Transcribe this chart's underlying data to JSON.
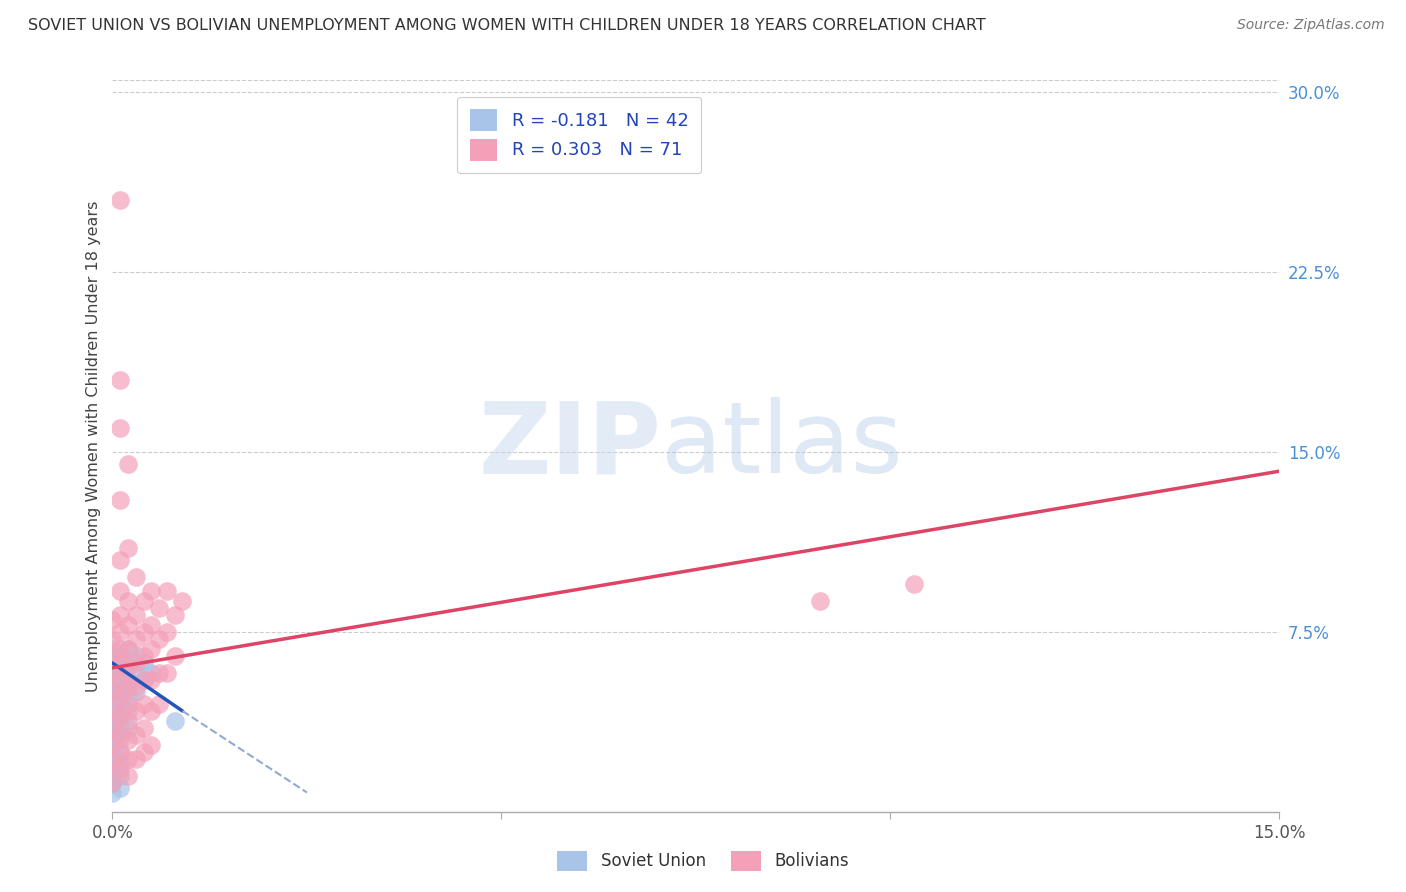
{
  "title": "SOVIET UNION VS BOLIVIAN UNEMPLOYMENT AMONG WOMEN WITH CHILDREN UNDER 18 YEARS CORRELATION CHART",
  "source": "Source: ZipAtlas.com",
  "ylabel": "Unemployment Among Women with Children Under 18 years",
  "right_yticks": [
    "30.0%",
    "22.5%",
    "15.0%",
    "7.5%"
  ],
  "right_ytick_vals": [
    0.3,
    0.225,
    0.15,
    0.075
  ],
  "legend_label1": "R = -0.181   N = 42",
  "legend_label2": "R = 0.303   N = 71",
  "xlim": [
    0.0,
    0.15
  ],
  "ylim": [
    0.0,
    0.305
  ],
  "soviet_color": "#a8c4e8",
  "bolivian_color": "#f4a0b8",
  "soviet_line_color": "#2255bb",
  "bolivian_line_color": "#dd4466",
  "soviet_line_dashed_color": "#90aad0",
  "background_color": "#ffffff",
  "soviet_points": [
    [
      0.0,
      0.068
    ],
    [
      0.0,
      0.062
    ],
    [
      0.0,
      0.058
    ],
    [
      0.0,
      0.055
    ],
    [
      0.0,
      0.05
    ],
    [
      0.0,
      0.045
    ],
    [
      0.0,
      0.042
    ],
    [
      0.0,
      0.038
    ],
    [
      0.0,
      0.035
    ],
    [
      0.0,
      0.032
    ],
    [
      0.0,
      0.028
    ],
    [
      0.0,
      0.025
    ],
    [
      0.0,
      0.022
    ],
    [
      0.0,
      0.018
    ],
    [
      0.0,
      0.015
    ],
    [
      0.0,
      0.012
    ],
    [
      0.0,
      0.008
    ],
    [
      0.001,
      0.065
    ],
    [
      0.001,
      0.06
    ],
    [
      0.001,
      0.055
    ],
    [
      0.001,
      0.05
    ],
    [
      0.001,
      0.045
    ],
    [
      0.001,
      0.04
    ],
    [
      0.001,
      0.035
    ],
    [
      0.001,
      0.03
    ],
    [
      0.001,
      0.025
    ],
    [
      0.001,
      0.02
    ],
    [
      0.001,
      0.015
    ],
    [
      0.001,
      0.01
    ],
    [
      0.002,
      0.068
    ],
    [
      0.002,
      0.062
    ],
    [
      0.002,
      0.055
    ],
    [
      0.002,
      0.048
    ],
    [
      0.002,
      0.042
    ],
    [
      0.002,
      0.035
    ],
    [
      0.003,
      0.065
    ],
    [
      0.003,
      0.058
    ],
    [
      0.003,
      0.05
    ],
    [
      0.004,
      0.062
    ],
    [
      0.004,
      0.055
    ],
    [
      0.005,
      0.058
    ],
    [
      0.008,
      0.038
    ]
  ],
  "bolivian_points": [
    [
      0.0,
      0.08
    ],
    [
      0.0,
      0.072
    ],
    [
      0.0,
      0.065
    ],
    [
      0.0,
      0.058
    ],
    [
      0.0,
      0.05
    ],
    [
      0.0,
      0.042
    ],
    [
      0.0,
      0.035
    ],
    [
      0.0,
      0.028
    ],
    [
      0.0,
      0.02
    ],
    [
      0.0,
      0.012
    ],
    [
      0.001,
      0.255
    ],
    [
      0.001,
      0.18
    ],
    [
      0.001,
      0.16
    ],
    [
      0.001,
      0.13
    ],
    [
      0.001,
      0.105
    ],
    [
      0.001,
      0.092
    ],
    [
      0.001,
      0.082
    ],
    [
      0.001,
      0.075
    ],
    [
      0.001,
      0.068
    ],
    [
      0.001,
      0.062
    ],
    [
      0.001,
      0.055
    ],
    [
      0.001,
      0.048
    ],
    [
      0.001,
      0.04
    ],
    [
      0.001,
      0.032
    ],
    [
      0.001,
      0.025
    ],
    [
      0.001,
      0.018
    ],
    [
      0.002,
      0.145
    ],
    [
      0.002,
      0.11
    ],
    [
      0.002,
      0.088
    ],
    [
      0.002,
      0.078
    ],
    [
      0.002,
      0.068
    ],
    [
      0.002,
      0.06
    ],
    [
      0.002,
      0.052
    ],
    [
      0.002,
      0.045
    ],
    [
      0.002,
      0.038
    ],
    [
      0.002,
      0.03
    ],
    [
      0.002,
      0.022
    ],
    [
      0.002,
      0.015
    ],
    [
      0.003,
      0.098
    ],
    [
      0.003,
      0.082
    ],
    [
      0.003,
      0.072
    ],
    [
      0.003,
      0.062
    ],
    [
      0.003,
      0.052
    ],
    [
      0.003,
      0.042
    ],
    [
      0.003,
      0.032
    ],
    [
      0.003,
      0.022
    ],
    [
      0.004,
      0.088
    ],
    [
      0.004,
      0.075
    ],
    [
      0.004,
      0.065
    ],
    [
      0.004,
      0.055
    ],
    [
      0.004,
      0.045
    ],
    [
      0.004,
      0.035
    ],
    [
      0.004,
      0.025
    ],
    [
      0.005,
      0.092
    ],
    [
      0.005,
      0.078
    ],
    [
      0.005,
      0.068
    ],
    [
      0.005,
      0.055
    ],
    [
      0.005,
      0.042
    ],
    [
      0.005,
      0.028
    ],
    [
      0.006,
      0.085
    ],
    [
      0.006,
      0.072
    ],
    [
      0.006,
      0.058
    ],
    [
      0.006,
      0.045
    ],
    [
      0.007,
      0.092
    ],
    [
      0.007,
      0.075
    ],
    [
      0.007,
      0.058
    ],
    [
      0.008,
      0.082
    ],
    [
      0.008,
      0.065
    ],
    [
      0.009,
      0.088
    ],
    [
      0.091,
      0.088
    ],
    [
      0.103,
      0.095
    ]
  ],
  "soviet_trendline_solid": [
    [
      0.0,
      0.062
    ],
    [
      0.009,
      0.042
    ]
  ],
  "soviet_trendline_dashed": [
    [
      0.009,
      0.042
    ],
    [
      0.025,
      0.008
    ]
  ],
  "bolivian_trendline": [
    [
      0.0,
      0.06
    ],
    [
      0.15,
      0.142
    ]
  ]
}
